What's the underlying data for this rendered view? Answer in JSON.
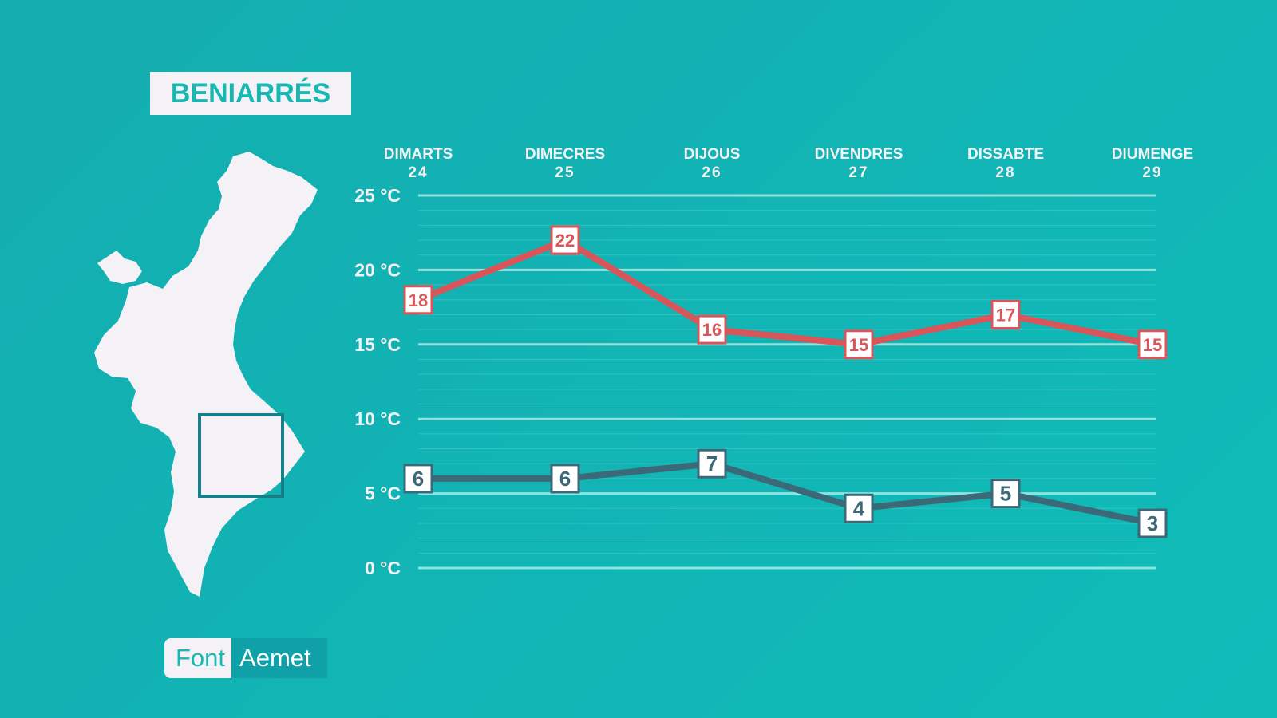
{
  "location": "BENIARRÉS",
  "source": {
    "label": "Font",
    "name": "Aemet"
  },
  "colors": {
    "background": "#13b1b3",
    "max_line": "#d9555a",
    "min_line": "#3c6978",
    "grid": "#8fe3df",
    "text": "#f4f2f6"
  },
  "chart_data": {
    "type": "line",
    "categories": [
      {
        "day": "DIMARTS",
        "date": "24"
      },
      {
        "day": "DIMECRES",
        "date": "25"
      },
      {
        "day": "DIJOUS",
        "date": "26"
      },
      {
        "day": "DIVENDRES",
        "date": "27"
      },
      {
        "day": "DISSABTE",
        "date": "28"
      },
      {
        "day": "DIUMENGE",
        "date": "29"
      }
    ],
    "series": [
      {
        "key": "max",
        "values": [
          18,
          22,
          16,
          15,
          17,
          15
        ]
      },
      {
        "key": "min",
        "values": [
          6,
          6,
          7,
          4,
          5,
          3
        ]
      }
    ],
    "yticks": [
      "25 °C",
      "20 °C",
      "15 °C",
      "10 °C",
      "5 °C",
      "0 °C"
    ],
    "ytick_values": [
      25,
      20,
      15,
      10,
      5,
      0
    ],
    "ylim": [
      0,
      25
    ],
    "grid": true,
    "unit": "°C"
  }
}
